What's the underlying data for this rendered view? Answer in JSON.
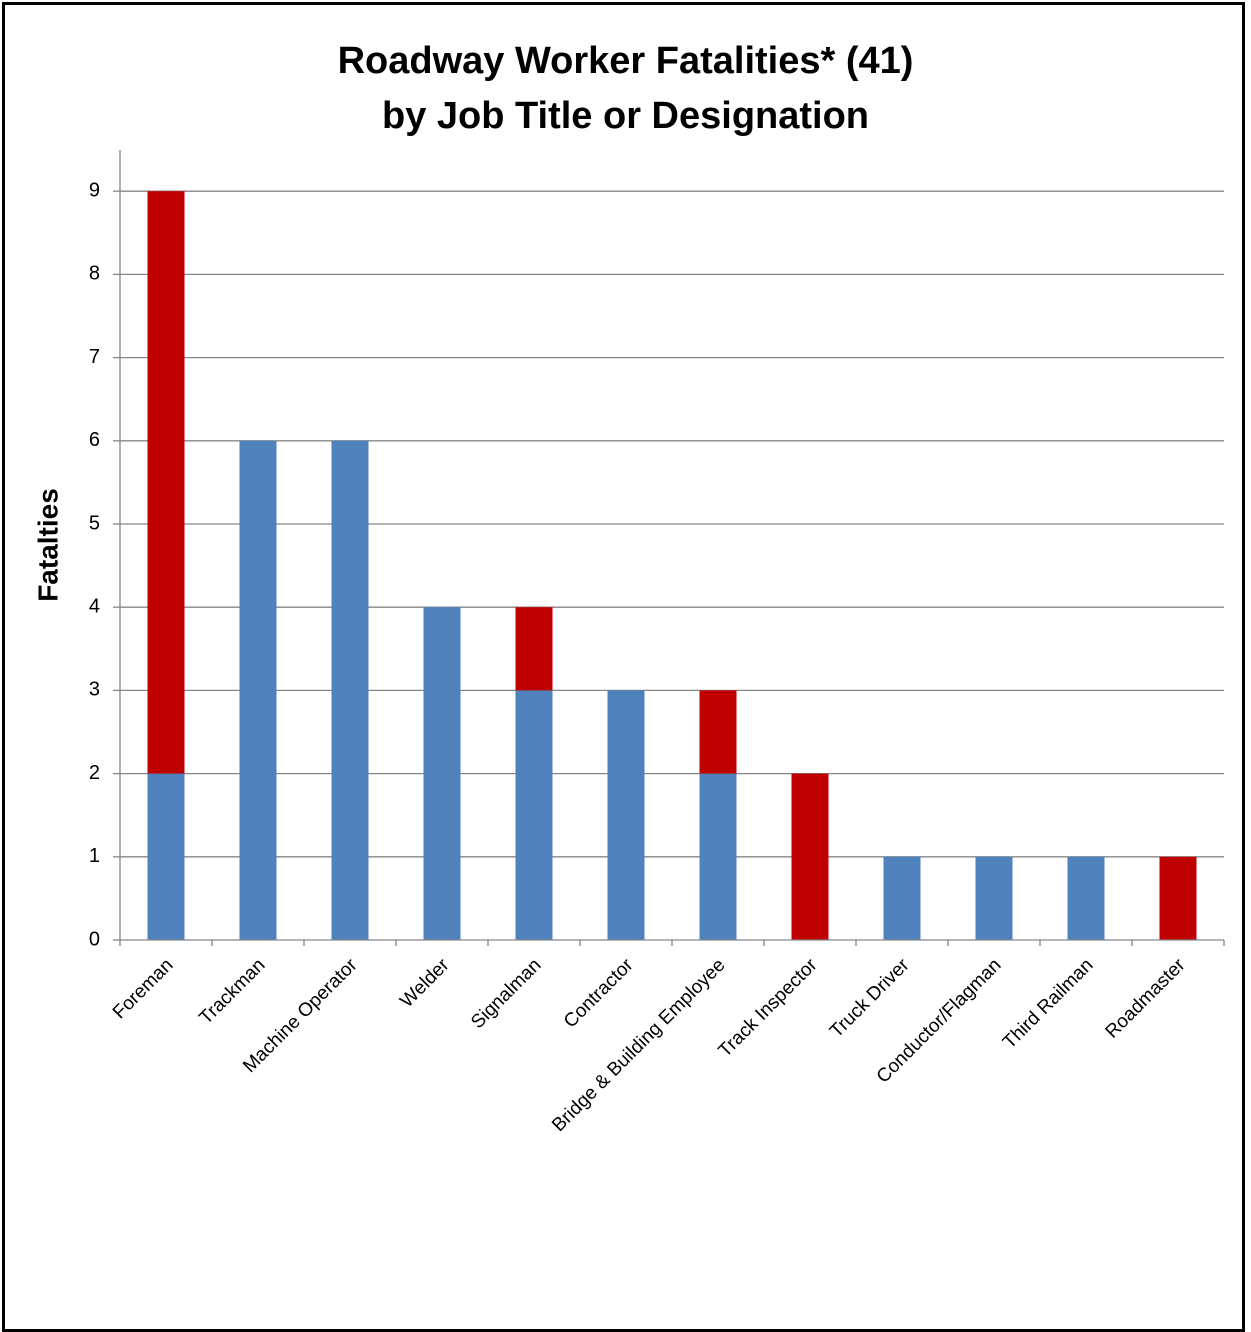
{
  "chart_data": {
    "type": "bar",
    "stacked": true,
    "title_lines": [
      "Roadway Worker Fatalities* (41)",
      "by Job Title or Designation"
    ],
    "xlabel": "",
    "ylabel": "Fatalties",
    "ylim": [
      0,
      9
    ],
    "yticks": [
      0,
      1,
      2,
      3,
      4,
      5,
      6,
      7,
      8,
      9
    ],
    "grid": true,
    "legend": "none",
    "categories": [
      "Foreman",
      "Trackman",
      "Machine Operator",
      "Welder",
      "Signalman",
      "Contractor",
      "Bridge & Building Employee",
      "Track Inspector",
      "Truck Driver",
      "Conductor/Flagman",
      "Third Railman",
      "Roadmaster"
    ],
    "series": [
      {
        "color": "#4F81BD",
        "values": [
          2,
          6,
          6,
          4,
          3,
          3,
          2,
          0,
          1,
          1,
          1,
          0
        ]
      },
      {
        "color": "#C00000",
        "values": [
          7,
          0,
          0,
          0,
          1,
          0,
          1,
          2,
          0,
          0,
          0,
          1
        ]
      }
    ]
  }
}
